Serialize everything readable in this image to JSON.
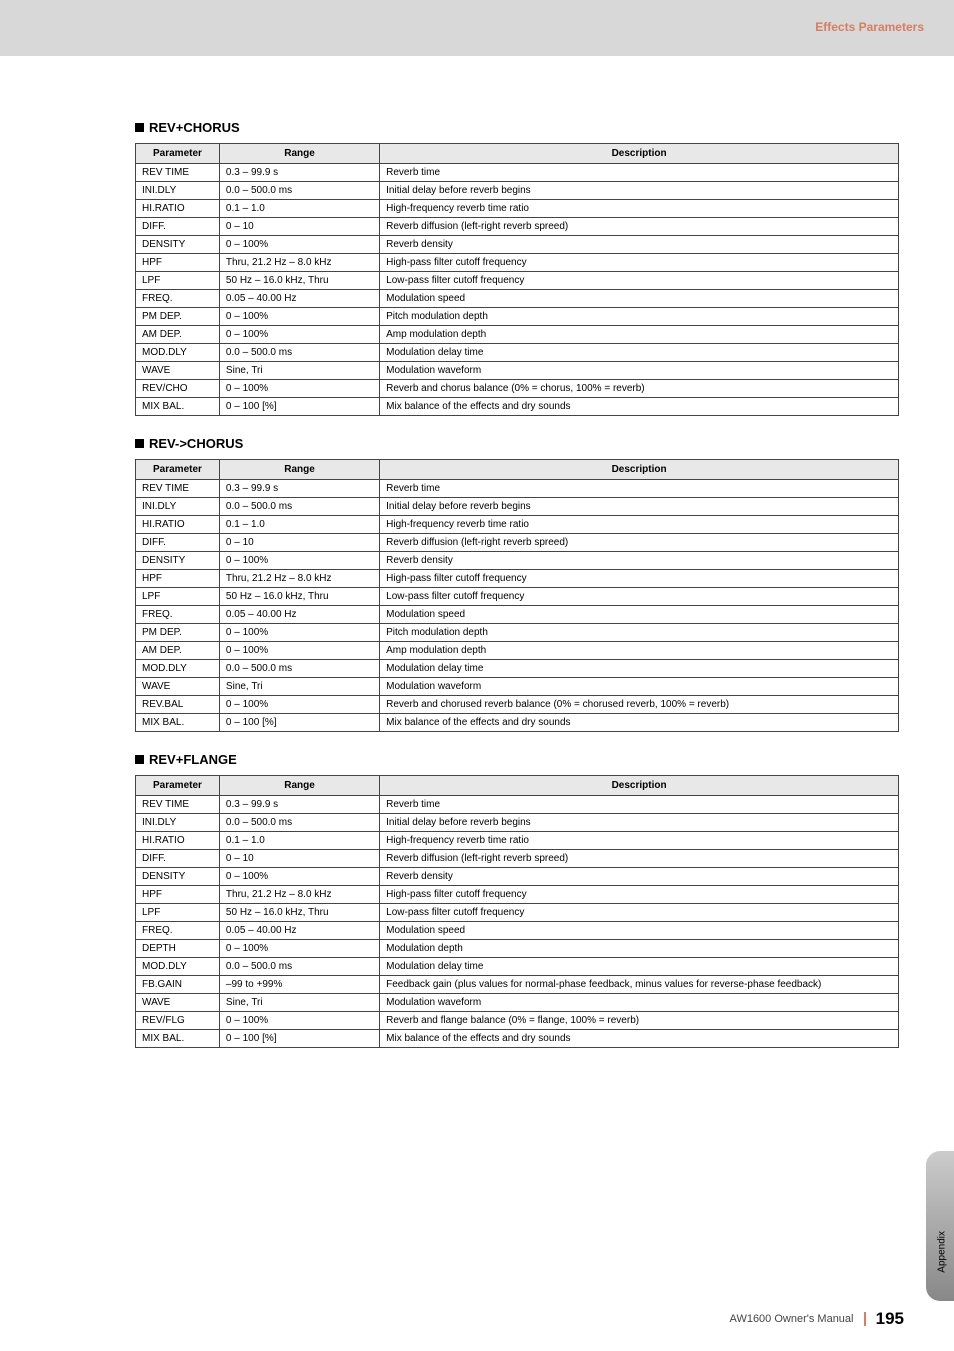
{
  "header": {
    "section_label": "Effects Parameters"
  },
  "footer": {
    "manual": "AW1600  Owner's Manual",
    "page": "195"
  },
  "side_tab": "Appendix",
  "columns": {
    "param": "Parameter",
    "range": "Range",
    "desc": "Description"
  },
  "sections": [
    {
      "title": "REV+CHORUS",
      "rows": [
        {
          "p": "REV TIME",
          "r": "0.3 – 99.9 s",
          "d": "Reverb time"
        },
        {
          "p": "INI.DLY",
          "r": "0.0 – 500.0 ms",
          "d": "Initial delay before reverb begins"
        },
        {
          "p": "HI.RATIO",
          "r": "0.1 – 1.0",
          "d": "High-frequency reverb time ratio"
        },
        {
          "p": "DIFF.",
          "r": "0 – 10",
          "d": "Reverb diffusion (left-right reverb spreed)"
        },
        {
          "p": "DENSITY",
          "r": "0 – 100%",
          "d": "Reverb density"
        },
        {
          "p": "HPF",
          "r": "Thru, 21.2 Hz – 8.0 kHz",
          "d": "High-pass filter cutoff frequency"
        },
        {
          "p": "LPF",
          "r": "50 Hz – 16.0 kHz, Thru",
          "d": "Low-pass filter cutoff frequency"
        },
        {
          "p": "FREQ.",
          "r": "0.05 – 40.00 Hz",
          "d": "Modulation speed"
        },
        {
          "p": "PM DEP.",
          "r": "0 – 100%",
          "d": "Pitch modulation depth"
        },
        {
          "p": "AM DEP.",
          "r": "0 – 100%",
          "d": "Amp modulation depth"
        },
        {
          "p": "MOD.DLY",
          "r": "0.0 – 500.0 ms",
          "d": "Modulation delay time"
        },
        {
          "p": "WAVE",
          "r": "Sine, Tri",
          "d": "Modulation waveform"
        },
        {
          "p": "REV/CHO",
          "r": "0 – 100%",
          "d": "Reverb and chorus balance (0% = chorus, 100% = reverb)"
        },
        {
          "p": "MIX BAL.",
          "r": "0 – 100 [%]",
          "d": "Mix balance of the effects and dry sounds"
        }
      ]
    },
    {
      "title": "REV->CHORUS",
      "rows": [
        {
          "p": "REV TIME",
          "r": "0.3 – 99.9 s",
          "d": "Reverb time"
        },
        {
          "p": "INI.DLY",
          "r": "0.0 – 500.0 ms",
          "d": "Initial delay before reverb begins"
        },
        {
          "p": "HI.RATIO",
          "r": "0.1 – 1.0",
          "d": "High-frequency reverb time ratio"
        },
        {
          "p": "DIFF.",
          "r": "0 – 10",
          "d": "Reverb diffusion (left-right reverb spreed)"
        },
        {
          "p": "DENSITY",
          "r": "0 – 100%",
          "d": "Reverb density"
        },
        {
          "p": "HPF",
          "r": "Thru, 21.2 Hz – 8.0 kHz",
          "d": "High-pass filter cutoff frequency"
        },
        {
          "p": "LPF",
          "r": "50 Hz – 16.0 kHz, Thru",
          "d": "Low-pass filter cutoff frequency"
        },
        {
          "p": "FREQ.",
          "r": "0.05 – 40.00 Hz",
          "d": "Modulation speed"
        },
        {
          "p": "PM DEP.",
          "r": "0 – 100%",
          "d": "Pitch modulation depth"
        },
        {
          "p": "AM DEP.",
          "r": "0 – 100%",
          "d": "Amp modulation depth"
        },
        {
          "p": "MOD.DLY",
          "r": "0.0 – 500.0 ms",
          "d": "Modulation delay time"
        },
        {
          "p": "WAVE",
          "r": "Sine, Tri",
          "d": "Modulation waveform"
        },
        {
          "p": "REV.BAL",
          "r": "0 – 100%",
          "d": "Reverb and chorused reverb balance (0% = chorused reverb, 100% = reverb)"
        },
        {
          "p": "MIX BAL.",
          "r": "0 – 100 [%]",
          "d": "Mix balance of the effects and dry sounds"
        }
      ]
    },
    {
      "title": "REV+FLANGE",
      "rows": [
        {
          "p": "REV TIME",
          "r": "0.3 – 99.9 s",
          "d": "Reverb time"
        },
        {
          "p": "INI.DLY",
          "r": "0.0 – 500.0 ms",
          "d": "Initial delay before reverb begins"
        },
        {
          "p": "HI.RATIO",
          "r": "0.1 – 1.0",
          "d": "High-frequency reverb time ratio"
        },
        {
          "p": "DIFF.",
          "r": "0 – 10",
          "d": "Reverb diffusion (left-right reverb spreed)"
        },
        {
          "p": "DENSITY",
          "r": "0 – 100%",
          "d": "Reverb density"
        },
        {
          "p": "HPF",
          "r": "Thru, 21.2 Hz – 8.0 kHz",
          "d": "High-pass filter cutoff frequency"
        },
        {
          "p": "LPF",
          "r": "50 Hz – 16.0 kHz, Thru",
          "d": "Low-pass filter cutoff frequency"
        },
        {
          "p": "FREQ.",
          "r": "0.05 – 40.00 Hz",
          "d": "Modulation speed"
        },
        {
          "p": "DEPTH",
          "r": "0 – 100%",
          "d": "Modulation depth"
        },
        {
          "p": "MOD.DLY",
          "r": "0.0 – 500.0 ms",
          "d": "Modulation delay time"
        },
        {
          "p": "FB.GAIN",
          "r": "–99 to +99%",
          "d": "Feedback gain (plus values for normal-phase feedback, minus values for reverse-phase feedback)"
        },
        {
          "p": "WAVE",
          "r": "Sine, Tri",
          "d": "Modulation waveform"
        },
        {
          "p": "REV/FLG",
          "r": "0 – 100%",
          "d": "Reverb and flange balance (0% = flange, 100% = reverb)"
        },
        {
          "p": "MIX BAL.",
          "r": "0 – 100 [%]",
          "d": "Mix balance of the effects and dry sounds"
        }
      ]
    }
  ]
}
